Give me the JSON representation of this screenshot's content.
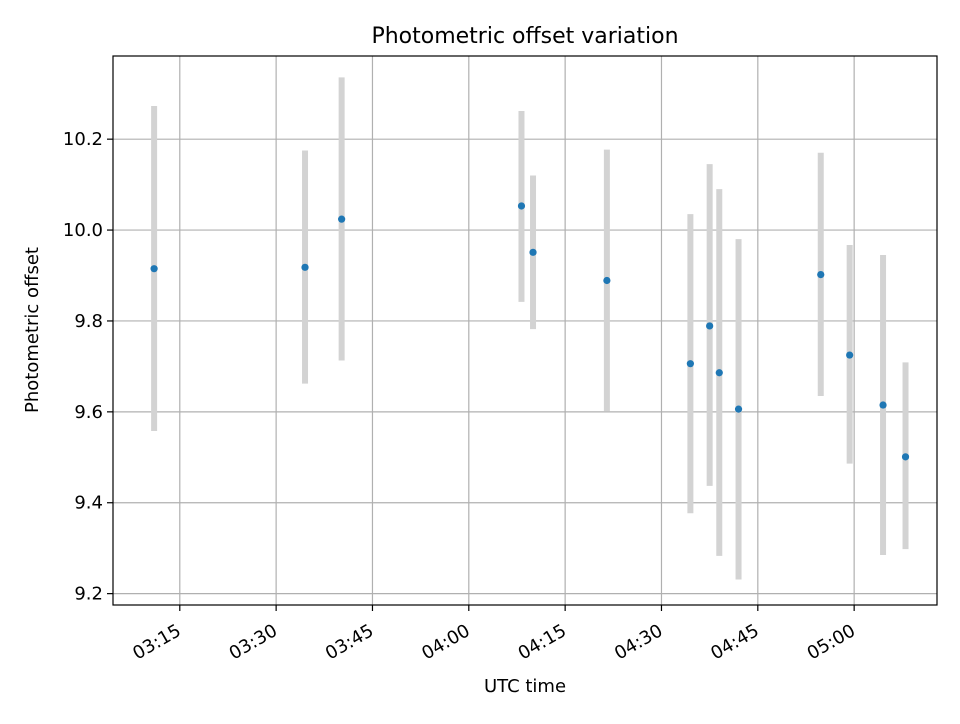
{
  "chart_data": {
    "type": "scatter",
    "title": "Photometric offset variation",
    "xlabel": "UTC time",
    "ylabel": "Photometric offset",
    "x_tick_labels": [
      "03:15",
      "03:30",
      "03:45",
      "04:00",
      "04:15",
      "04:30",
      "04:45",
      "05:00"
    ],
    "x_tick_minutes": [
      195,
      210,
      225,
      240,
      255,
      270,
      285,
      300
    ],
    "y_ticks": [
      9.2,
      9.4,
      9.6,
      9.8,
      10.0,
      10.2
    ],
    "y_tick_labels": [
      "9.2",
      "9.4",
      "9.6",
      "9.8",
      "10.0",
      "10.2"
    ],
    "xlim_minutes": [
      184.6,
      312.9
    ],
    "ylim": [
      9.175,
      10.383
    ],
    "grid": true,
    "points": [
      {
        "t": "03:11",
        "y": 9.915,
        "ylow": 9.558,
        "yhigh": 10.273
      },
      {
        "t": "03:34.5",
        "y": 9.918,
        "ylow": 9.662,
        "yhigh": 10.175
      },
      {
        "t": "03:40.2",
        "y": 10.024,
        "ylow": 9.713,
        "yhigh": 10.336
      },
      {
        "t": "04:08.2",
        "y": 10.053,
        "ylow": 9.842,
        "yhigh": 10.262
      },
      {
        "t": "04:10",
        "y": 9.951,
        "ylow": 9.782,
        "yhigh": 10.12
      },
      {
        "t": "04:21.5",
        "y": 9.889,
        "ylow": 9.601,
        "yhigh": 10.177
      },
      {
        "t": "04:34.5",
        "y": 9.706,
        "ylow": 9.377,
        "yhigh": 10.035
      },
      {
        "t": "04:37.5",
        "y": 9.789,
        "ylow": 9.437,
        "yhigh": 10.145
      },
      {
        "t": "04:39",
        "y": 9.686,
        "ylow": 9.283,
        "yhigh": 10.09
      },
      {
        "t": "04:42",
        "y": 9.606,
        "ylow": 9.231,
        "yhigh": 9.98
      },
      {
        "t": "04:54.8",
        "y": 9.902,
        "ylow": 9.635,
        "yhigh": 10.17
      },
      {
        "t": "04:59.3",
        "y": 9.725,
        "ylow": 9.486,
        "yhigh": 9.967
      },
      {
        "t": "05:04.5",
        "y": 9.615,
        "ylow": 9.285,
        "yhigh": 9.945
      },
      {
        "t": "05:08",
        "y": 9.501,
        "ylow": 9.298,
        "yhigh": 9.709
      }
    ],
    "colors": {
      "point": "#1f77b4",
      "errorbar": "#d3d3d3",
      "grid": "#b0b0b0",
      "axes": "#000000"
    }
  }
}
